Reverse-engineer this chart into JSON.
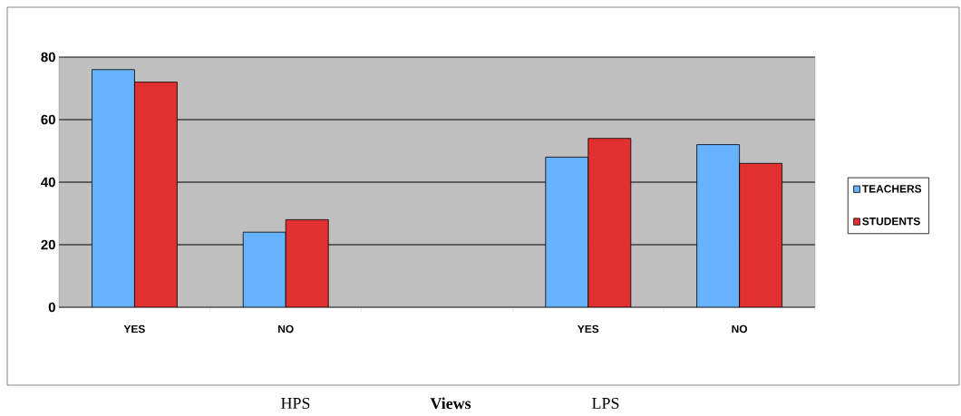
{
  "chart_data": {
    "type": "bar",
    "xlabel": "Views",
    "categories": [
      "YES",
      "NO",
      null,
      "YES",
      "NO"
    ],
    "series": [
      {
        "name": "TEACHERS",
        "color": "#66b2ff",
        "values": [
          76,
          24,
          null,
          48,
          52
        ]
      },
      {
        "name": "STUDENTS",
        "color": "#e03030",
        "values": [
          72,
          28,
          null,
          54,
          46
        ]
      }
    ],
    "ylim": [
      0,
      80
    ],
    "yticks": [
      0,
      20,
      40,
      60,
      80
    ],
    "grid": "y",
    "legend": "right",
    "annotations": [
      "HPS",
      "LPS"
    ]
  }
}
